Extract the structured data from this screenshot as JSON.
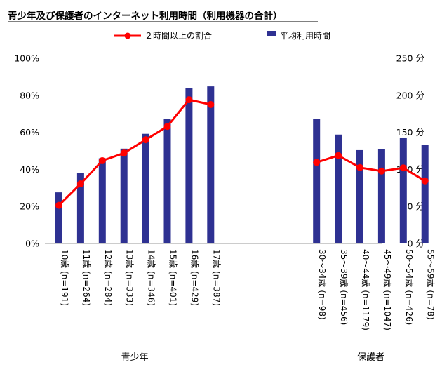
{
  "chart_data": {
    "type": "bar",
    "title": "青少年及び保護者のインターネット利用時間（利用機器の合計）",
    "left_axis": {
      "ticks": [
        "0%",
        "20%",
        "40%",
        "60%",
        "80%",
        "100%"
      ],
      "range": [
        0,
        100
      ]
    },
    "right_axis": {
      "ticks": [
        "0 分",
        "50 分",
        "100 分",
        "150 分",
        "200 分",
        "250 分"
      ],
      "range": [
        0,
        250
      ]
    },
    "categories": [
      "10歳 (n=191)",
      "11歳 (n=264)",
      "12歳 (n=284)",
      "13歳 (n=333)",
      "14歳 (n=346)",
      "15歳 (n=401)",
      "16歳 (n=429)",
      "17歳 (n=387)",
      "30～34歳 (n=98)",
      "35～39歳 (n=456)",
      "40～44歳 (n=1179)",
      "45～49歳 (n=1047)",
      "50～54歳 (n=426)",
      "55～59歳 (n=78)"
    ],
    "groups": [
      {
        "label": "青少年",
        "start": 0,
        "end": 7
      },
      {
        "label": "保護者",
        "start": 8,
        "end": 13
      }
    ],
    "series": [
      {
        "name": "平均利用時間",
        "type": "bar",
        "axis": "right",
        "color": "#2e3192",
        "segments": [
          [
            0,
            7
          ],
          [
            8,
            13
          ]
        ],
        "values": [
          69,
          95,
          115,
          128,
          148,
          168,
          210,
          212,
          168,
          147,
          126,
          127,
          143,
          133
        ]
      },
      {
        "name": "２時間以上の割合",
        "type": "line",
        "axis": "left",
        "color": "#ff0000",
        "segments": [
          [
            0,
            7
          ],
          [
            8,
            13
          ]
        ],
        "values": [
          20.6,
          32.2,
          44.7,
          48.8,
          56.0,
          63.2,
          77.6,
          75.0,
          43.8,
          47.5,
          41.0,
          39.1,
          40.8,
          33.8
        ]
      }
    ]
  }
}
